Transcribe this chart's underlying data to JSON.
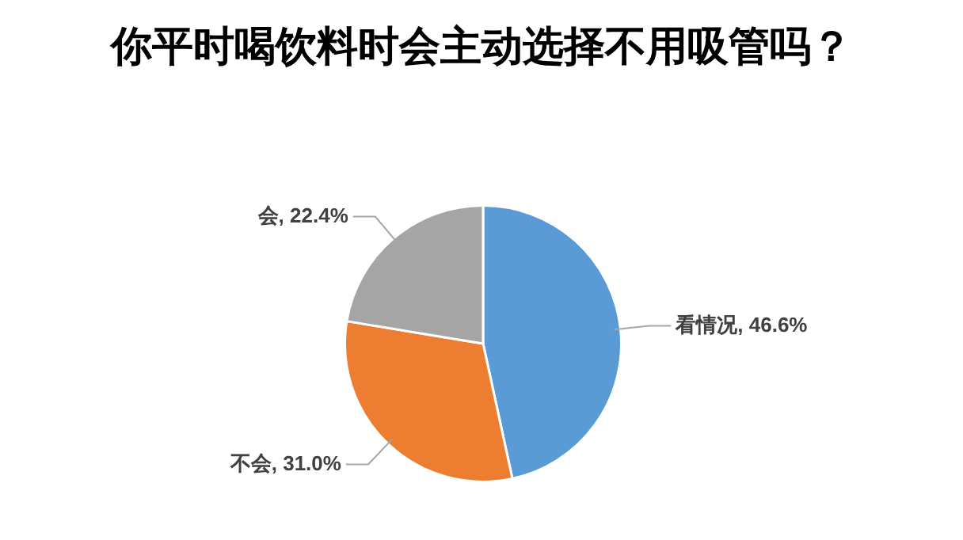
{
  "chart_data": {
    "type": "pie",
    "title": "你平时喝饮料时会主动选择不用吸管吗？",
    "categories": [
      "看情况",
      "不会",
      "会"
    ],
    "values": [
      46.6,
      31.0,
      22.4
    ],
    "value_labels": [
      "46.6%",
      "31.0%",
      "22.4%"
    ],
    "colors": [
      "#5b9bd5",
      "#ed7d31",
      "#a5a5a5"
    ],
    "legend": false
  }
}
